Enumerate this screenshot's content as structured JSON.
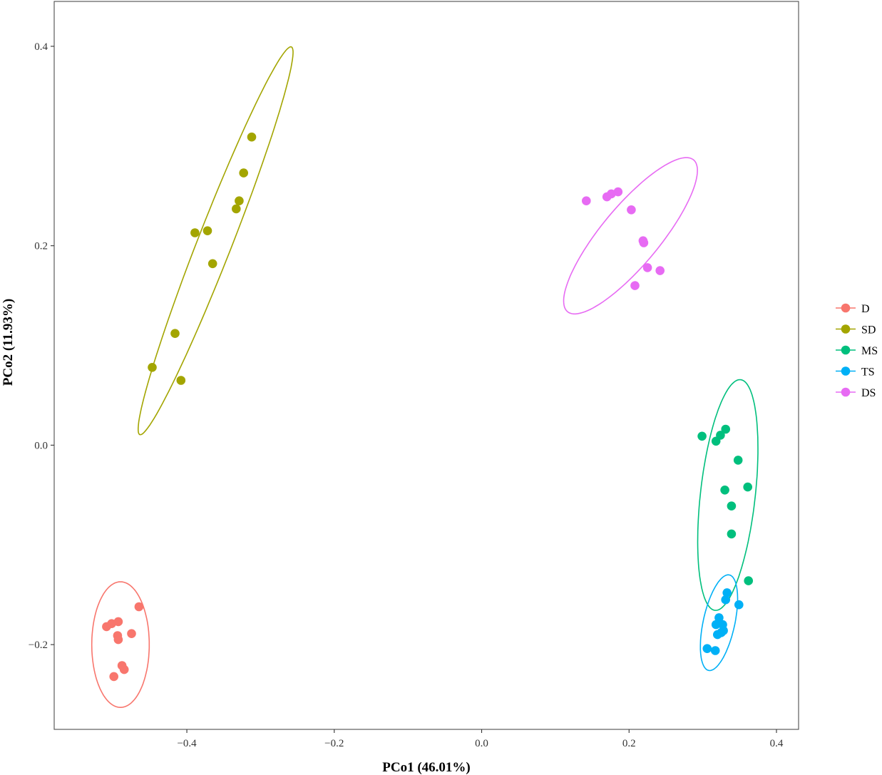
{
  "chart_data": {
    "type": "scatter",
    "title": "",
    "xlabel": "PCo1 (46.01%)",
    "ylabel": "PCo2 (11.93%)",
    "xlim": [
      -0.58,
      0.43
    ],
    "ylim": [
      -0.285,
      0.445
    ],
    "xticks": [
      -0.4,
      -0.2,
      0.0,
      0.2,
      0.4
    ],
    "xtick_labels": [
      "−0.4",
      "−0.2",
      "0.0",
      "0.2",
      "0.4"
    ],
    "yticks": [
      -0.2,
      0.0,
      0.2,
      0.4
    ],
    "ytick_labels": [
      "−0.2",
      "0.0",
      "0.2",
      "0.4"
    ],
    "grid": false,
    "legend_position": "right",
    "series": [
      {
        "name": "D",
        "color": "#F8766D",
        "points": [
          [
            -0.465,
            -0.162
          ],
          [
            -0.493,
            -0.177
          ],
          [
            -0.502,
            -0.179
          ],
          [
            -0.509,
            -0.182
          ],
          [
            -0.475,
            -0.189
          ],
          [
            -0.494,
            -0.191
          ],
          [
            -0.493,
            -0.195
          ],
          [
            -0.488,
            -0.221
          ],
          [
            -0.485,
            -0.225
          ],
          [
            -0.499,
            -0.232
          ]
        ],
        "ellipse": {
          "cx": -0.49,
          "cy": -0.2,
          "rx": 0.039,
          "ry": 0.063,
          "angle": 0
        }
      },
      {
        "name": "SD",
        "color": "#A3A500",
        "points": [
          [
            -0.312,
            0.309
          ],
          [
            -0.323,
            0.273
          ],
          [
            -0.329,
            0.245
          ],
          [
            -0.333,
            0.237
          ],
          [
            -0.372,
            0.215
          ],
          [
            -0.389,
            0.213
          ],
          [
            -0.365,
            0.182
          ],
          [
            -0.416,
            0.112
          ],
          [
            -0.447,
            0.078
          ],
          [
            -0.408,
            0.065
          ]
        ],
        "ellipse": {
          "cx": -0.361,
          "cy": 0.205,
          "rx": 0.22,
          "ry": 0.022,
          "angle": 62
        }
      },
      {
        "name": "MS",
        "color": "#00BF7D",
        "points": [
          [
            0.331,
            0.016
          ],
          [
            0.324,
            0.01
          ],
          [
            0.299,
            0.009
          ],
          [
            0.318,
            0.004
          ],
          [
            0.348,
            -0.015
          ],
          [
            0.361,
            -0.042
          ],
          [
            0.33,
            -0.045
          ],
          [
            0.339,
            -0.061
          ],
          [
            0.339,
            -0.089
          ],
          [
            0.362,
            -0.136
          ]
        ],
        "ellipse": {
          "cx": 0.334,
          "cy": -0.05,
          "rx": 0.037,
          "ry": 0.117,
          "angle": -9
        }
      },
      {
        "name": "TS",
        "color": "#00B0F6",
        "points": [
          [
            0.333,
            -0.148
          ],
          [
            0.331,
            -0.155
          ],
          [
            0.349,
            -0.16
          ],
          [
            0.322,
            -0.173
          ],
          [
            0.318,
            -0.18
          ],
          [
            0.327,
            -0.18
          ],
          [
            0.328,
            -0.186
          ],
          [
            0.325,
            -0.188
          ],
          [
            0.32,
            -0.19
          ],
          [
            0.306,
            -0.204
          ],
          [
            0.317,
            -0.206
          ]
        ],
        "ellipse": {
          "cx": 0.322,
          "cy": -0.178,
          "rx": 0.021,
          "ry": 0.05,
          "angle": -18
        }
      },
      {
        "name": "DS",
        "color": "#E76BF3",
        "points": [
          [
            0.185,
            0.254
          ],
          [
            0.176,
            0.252
          ],
          [
            0.17,
            0.249
          ],
          [
            0.142,
            0.245
          ],
          [
            0.203,
            0.236
          ],
          [
            0.219,
            0.205
          ],
          [
            0.22,
            0.203
          ],
          [
            0.242,
            0.175
          ],
          [
            0.225,
            0.178
          ],
          [
            0.208,
            0.16
          ]
        ],
        "ellipse": {
          "cx": 0.202,
          "cy": 0.21,
          "rx": 0.115,
          "ry": 0.034,
          "angle": 40
        }
      }
    ]
  }
}
